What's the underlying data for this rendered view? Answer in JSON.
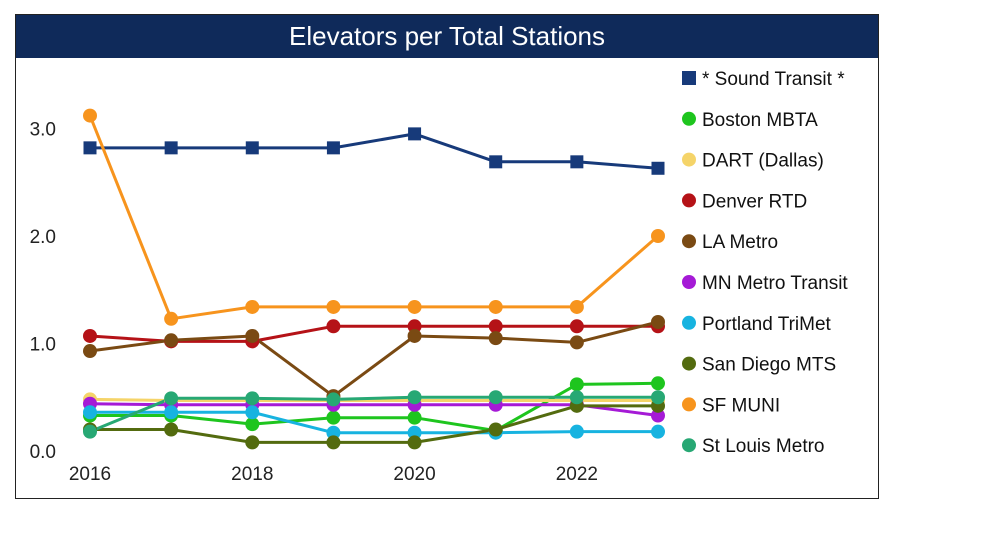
{
  "chart_data": {
    "type": "line",
    "title": "Elevators per Total Stations",
    "x": [
      2016,
      2017,
      2018,
      2019,
      2020,
      2021,
      2022,
      2023
    ],
    "xticks": [
      "2016",
      "2018",
      "2020",
      "2022"
    ],
    "yticks": [
      "0.0",
      "1.0",
      "2.0",
      "3.0"
    ],
    "ylim": [
      0,
      3.55
    ],
    "xlim": [
      2016,
      2023
    ],
    "xlabel": "",
    "ylabel": "",
    "legend_position": "right",
    "series": [
      {
        "name": "* Sound Transit *",
        "color": "#173a7a",
        "marker": "square",
        "values": [
          2.82,
          2.82,
          2.82,
          2.82,
          2.95,
          2.69,
          2.69,
          2.63
        ]
      },
      {
        "name": "Boston MBTA",
        "color": "#1ec51e",
        "marker": "circle",
        "values": [
          0.33,
          0.33,
          0.25,
          0.31,
          0.31,
          0.19,
          0.62,
          0.63
        ]
      },
      {
        "name": "DART (Dallas)",
        "color": "#f5d469",
        "marker": "circle",
        "values": [
          0.48,
          0.47,
          0.47,
          0.47,
          0.47,
          0.47,
          0.47,
          0.47
        ]
      },
      {
        "name": "Denver RTD",
        "color": "#b51217",
        "marker": "circle",
        "values": [
          1.07,
          1.02,
          1.02,
          1.16,
          1.16,
          1.16,
          1.16,
          1.16
        ]
      },
      {
        "name": "LA Metro",
        "color": "#7a4a13",
        "marker": "circle",
        "values": [
          0.93,
          1.03,
          1.07,
          0.51,
          1.07,
          1.05,
          1.01,
          1.2
        ]
      },
      {
        "name": "MN Metro Transit",
        "color": "#a51ad6",
        "marker": "circle",
        "values": [
          0.44,
          0.43,
          0.43,
          0.43,
          0.43,
          0.43,
          0.43,
          0.33
        ]
      },
      {
        "name": "Portland TriMet",
        "color": "#17b3e0",
        "marker": "circle",
        "values": [
          0.36,
          0.36,
          0.36,
          0.17,
          0.17,
          0.17,
          0.18,
          0.18
        ]
      },
      {
        "name": "San Diego MTS",
        "color": "#536b0f",
        "marker": "circle",
        "values": [
          0.2,
          0.2,
          0.08,
          0.08,
          0.08,
          0.2,
          0.42,
          0.42
        ]
      },
      {
        "name": "SF MUNI",
        "color": "#f7941d",
        "marker": "circle",
        "values": [
          3.12,
          1.23,
          1.34,
          1.34,
          1.34,
          1.34,
          1.34,
          2.0
        ]
      },
      {
        "name": "St Louis Metro",
        "color": "#27a874",
        "marker": "circle",
        "values": [
          0.18,
          0.49,
          0.49,
          0.48,
          0.5,
          0.5,
          0.5,
          0.5
        ]
      }
    ]
  }
}
